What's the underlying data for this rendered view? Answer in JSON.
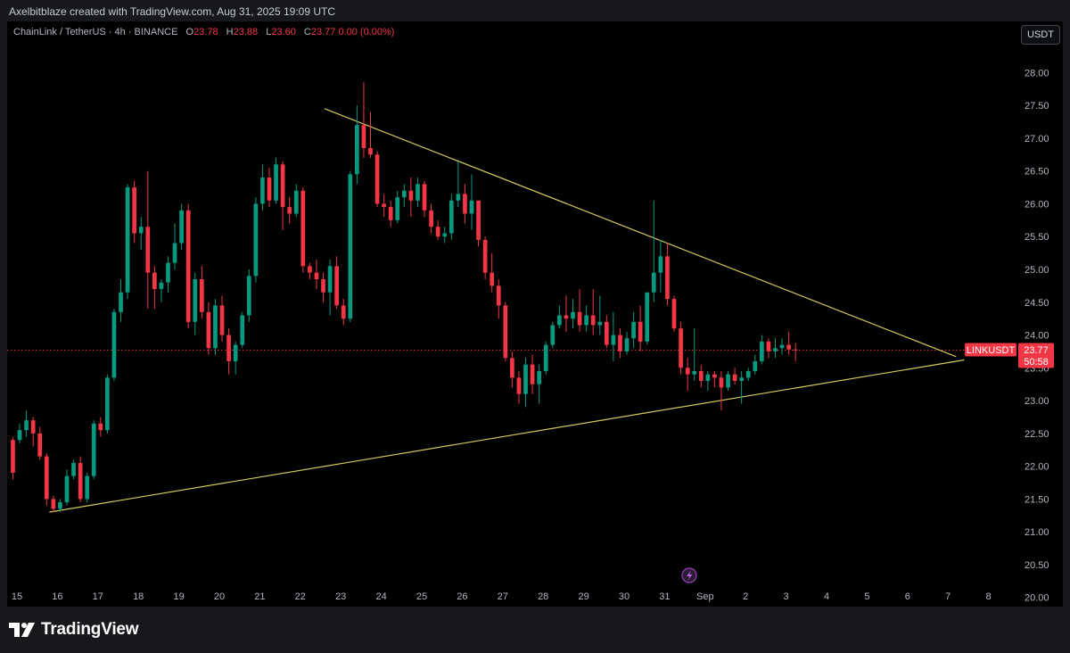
{
  "credit": "Axelbitblaze created with TradingView.com, Aug 31, 2025 19:09 UTC",
  "legend": {
    "symbol": "ChainLink / TetherUS · 4h · BINANCE",
    "o_label": "O",
    "o_value": "23.78",
    "h_label": "H",
    "h_value": "23.88",
    "l_label": "L",
    "l_value": "23.60",
    "c_label": "C",
    "c_value": "23.77",
    "change": "0.00 (0.00%)"
  },
  "currency_button": "USDT",
  "price_tag": {
    "symbol": "LINKUSDT",
    "price": "23.77",
    "countdown": "50:58"
  },
  "brand": "TradingView",
  "colors": {
    "up": "#089981",
    "down": "#f23645",
    "trendline": "#d4c95c",
    "price_line": "#f23645"
  },
  "chart_data": {
    "type": "candlestick",
    "title": "",
    "xlabel": "",
    "ylabel": "",
    "ylim": [
      19.86,
      28.78
    ],
    "y_ticks": [
      "20.00",
      "20.50",
      "21.00",
      "21.50",
      "22.00",
      "22.50",
      "23.00",
      "23.50",
      "24.00",
      "24.50",
      "25.00",
      "25.50",
      "26.00",
      "26.50",
      "27.00",
      "27.50",
      "28.00",
      "28.50"
    ],
    "x_ticks": [
      "15",
      "16",
      "17",
      "18",
      "19",
      "20",
      "21",
      "22",
      "23",
      "24",
      "25",
      "26",
      "27",
      "28",
      "29",
      "30",
      "31",
      "Sep",
      "2",
      "3",
      "4",
      "5",
      "6",
      "7",
      "8"
    ],
    "x_range_days": [
      15,
      38.5
    ],
    "candles_per_day": 6,
    "start_day": 14.9,
    "candles": [
      [
        22.4,
        22.45,
        21.8,
        21.9
      ],
      [
        22.4,
        22.65,
        22.35,
        22.55
      ],
      [
        22.55,
        22.85,
        22.45,
        22.7
      ],
      [
        22.7,
        22.75,
        22.3,
        22.5
      ],
      [
        22.5,
        22.6,
        22.1,
        22.15
      ],
      [
        22.15,
        22.2,
        21.4,
        21.5
      ],
      [
        21.5,
        21.55,
        21.3,
        21.35
      ],
      [
        21.35,
        21.5,
        21.3,
        21.45
      ],
      [
        21.45,
        21.95,
        21.4,
        21.85
      ],
      [
        21.85,
        22.1,
        21.8,
        22.05
      ],
      [
        22.05,
        22.15,
        21.45,
        21.5
      ],
      [
        21.5,
        21.9,
        21.45,
        21.85
      ],
      [
        21.85,
        22.7,
        21.8,
        22.65
      ],
      [
        22.65,
        22.75,
        22.45,
        22.55
      ],
      [
        22.55,
        23.4,
        22.5,
        23.35
      ],
      [
        23.35,
        24.4,
        23.3,
        24.35
      ],
      [
        24.35,
        24.85,
        24.2,
        24.65
      ],
      [
        24.65,
        26.3,
        24.55,
        26.25
      ],
      [
        26.25,
        26.35,
        25.4,
        25.55
      ],
      [
        25.55,
        25.8,
        25.3,
        25.65
      ],
      [
        25.65,
        26.5,
        24.4,
        24.95
      ],
      [
        24.95,
        25.05,
        24.4,
        24.7
      ],
      [
        24.7,
        24.85,
        24.5,
        24.8
      ],
      [
        24.8,
        25.2,
        24.65,
        25.1
      ],
      [
        25.1,
        25.7,
        25.0,
        25.4
      ],
      [
        25.4,
        26.0,
        25.3,
        25.9
      ],
      [
        25.9,
        26.0,
        24.1,
        24.2
      ],
      [
        24.2,
        24.95,
        24.0,
        24.85
      ],
      [
        24.85,
        25.05,
        24.25,
        24.35
      ],
      [
        24.35,
        24.5,
        23.7,
        23.8
      ],
      [
        23.8,
        24.55,
        23.7,
        24.45
      ],
      [
        24.45,
        24.6,
        23.9,
        24.0
      ],
      [
        24.0,
        24.1,
        23.4,
        23.6
      ],
      [
        23.6,
        23.9,
        23.4,
        23.85
      ],
      [
        23.85,
        24.35,
        23.8,
        24.3
      ],
      [
        24.3,
        25.0,
        24.2,
        24.9
      ],
      [
        24.9,
        26.1,
        24.8,
        26.0
      ],
      [
        26.0,
        26.6,
        25.9,
        26.4
      ],
      [
        26.4,
        26.55,
        25.95,
        26.05
      ],
      [
        26.05,
        26.7,
        26.0,
        26.6
      ],
      [
        26.6,
        26.65,
        25.6,
        25.95
      ],
      [
        25.95,
        26.1,
        25.7,
        25.85
      ],
      [
        25.85,
        26.3,
        25.8,
        26.2
      ],
      [
        26.2,
        26.25,
        24.95,
        25.05
      ],
      [
        25.05,
        25.1,
        24.85,
        24.95
      ],
      [
        24.95,
        25.15,
        24.7,
        24.85
      ],
      [
        24.85,
        24.95,
        24.5,
        24.65
      ],
      [
        24.65,
        25.15,
        24.3,
        25.05
      ],
      [
        25.05,
        25.2,
        24.4,
        24.45
      ],
      [
        24.45,
        24.55,
        24.15,
        24.25
      ],
      [
        24.25,
        26.5,
        24.2,
        26.45
      ],
      [
        26.45,
        27.5,
        26.3,
        27.2
      ],
      [
        27.2,
        27.85,
        26.7,
        26.85
      ],
      [
        26.85,
        27.4,
        26.7,
        26.75
      ],
      [
        26.75,
        26.8,
        25.95,
        26.0
      ],
      [
        26.0,
        26.15,
        25.8,
        25.95
      ],
      [
        25.95,
        26.05,
        25.65,
        25.75
      ],
      [
        25.75,
        26.2,
        25.7,
        26.1
      ],
      [
        26.1,
        26.3,
        25.95,
        26.2
      ],
      [
        26.2,
        26.4,
        25.8,
        26.05
      ],
      [
        26.05,
        26.4,
        25.95,
        26.3
      ],
      [
        26.3,
        26.35,
        25.8,
        25.9
      ],
      [
        25.9,
        26.0,
        25.55,
        25.65
      ],
      [
        25.65,
        25.75,
        25.45,
        25.5
      ],
      [
        25.5,
        25.65,
        25.4,
        25.55
      ],
      [
        25.55,
        26.15,
        25.45,
        26.05
      ],
      [
        26.05,
        26.65,
        25.95,
        26.15
      ],
      [
        26.15,
        26.3,
        25.7,
        25.85
      ],
      [
        25.85,
        26.45,
        25.6,
        26.05
      ],
      [
        26.05,
        26.05,
        25.35,
        25.45
      ],
      [
        25.45,
        25.5,
        24.85,
        24.95
      ],
      [
        24.95,
        25.25,
        24.65,
        24.75
      ],
      [
        24.75,
        24.85,
        24.25,
        24.45
      ],
      [
        24.45,
        24.5,
        23.6,
        23.65
      ],
      [
        23.65,
        23.75,
        23.2,
        23.35
      ],
      [
        23.35,
        23.45,
        22.95,
        23.1
      ],
      [
        23.1,
        23.65,
        22.9,
        23.55
      ],
      [
        23.55,
        23.7,
        23.1,
        23.25
      ],
      [
        23.25,
        23.55,
        22.95,
        23.45
      ],
      [
        23.45,
        23.9,
        23.4,
        23.85
      ],
      [
        23.85,
        24.2,
        23.8,
        24.15
      ],
      [
        24.15,
        24.45,
        24.1,
        24.3
      ],
      [
        24.3,
        24.6,
        24.05,
        24.25
      ],
      [
        24.25,
        24.55,
        24.1,
        24.35
      ],
      [
        24.35,
        24.7,
        24.05,
        24.15
      ],
      [
        24.15,
        24.45,
        24.05,
        24.3
      ],
      [
        24.3,
        24.7,
        24.0,
        24.15
      ],
      [
        24.15,
        24.6,
        24.0,
        24.2
      ],
      [
        24.2,
        24.3,
        23.8,
        23.85
      ],
      [
        23.85,
        24.35,
        23.6,
        24.0
      ],
      [
        24.0,
        24.1,
        23.65,
        23.75
      ],
      [
        23.75,
        24.05,
        23.7,
        23.95
      ],
      [
        23.95,
        24.35,
        23.8,
        24.2
      ],
      [
        24.2,
        24.45,
        23.75,
        23.9
      ],
      [
        23.9,
        24.6,
        23.85,
        24.65
      ],
      [
        24.65,
        26.05,
        24.5,
        24.95
      ],
      [
        24.95,
        25.45,
        24.65,
        25.2
      ],
      [
        25.2,
        25.4,
        24.45,
        24.55
      ],
      [
        24.55,
        24.6,
        24.05,
        24.1
      ],
      [
        24.1,
        24.2,
        23.4,
        23.5
      ],
      [
        23.5,
        23.65,
        23.15,
        23.4
      ],
      [
        23.4,
        24.1,
        23.3,
        23.45
      ],
      [
        23.45,
        23.55,
        23.2,
        23.3
      ],
      [
        23.3,
        23.45,
        23.15,
        23.4
      ],
      [
        23.4,
        23.45,
        23.2,
        23.35
      ],
      [
        23.35,
        23.45,
        22.85,
        23.2
      ],
      [
        23.2,
        23.45,
        23.15,
        23.4
      ],
      [
        23.4,
        23.5,
        23.25,
        23.3
      ],
      [
        23.3,
        23.45,
        22.95,
        23.35
      ],
      [
        23.35,
        23.5,
        23.3,
        23.45
      ],
      [
        23.45,
        23.7,
        23.4,
        23.6
      ],
      [
        23.6,
        24.0,
        23.55,
        23.9
      ],
      [
        23.9,
        23.95,
        23.65,
        23.75
      ],
      [
        23.75,
        23.95,
        23.65,
        23.8
      ],
      [
        23.8,
        23.95,
        23.7,
        23.85
      ],
      [
        23.85,
        24.05,
        23.7,
        23.78
      ],
      [
        23.78,
        23.88,
        23.6,
        23.77
      ]
    ],
    "current_price": 23.77,
    "trendlines": [
      {
        "name": "",
        "from": [
          15.8,
          21.3
        ],
        "to": [
          38.4,
          23.62
        ]
      },
      {
        "name": "",
        "from": [
          22.6,
          27.45
        ],
        "to": [
          38.2,
          23.67
        ]
      }
    ]
  }
}
